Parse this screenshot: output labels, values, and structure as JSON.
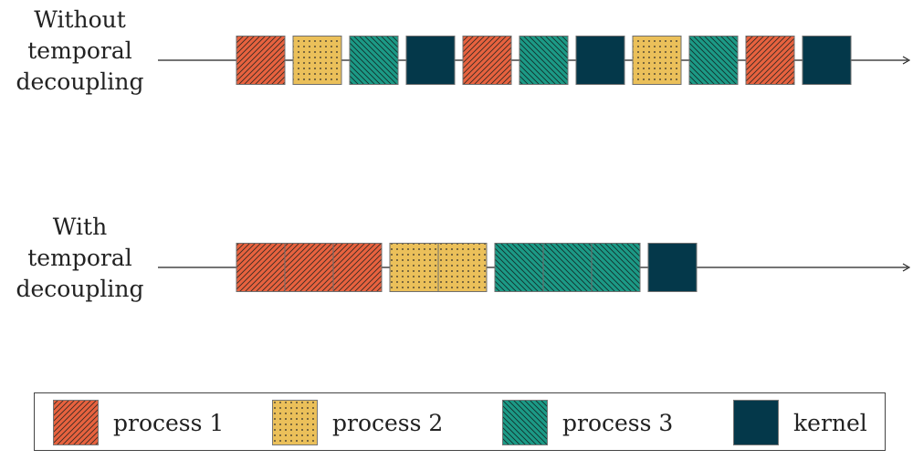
{
  "rows": [
    {
      "label": [
        "Without",
        "temporal",
        "decoupling"
      ],
      "sequence": [
        "p1",
        "p2",
        "p3",
        "kernel",
        "p1",
        "p3",
        "kernel",
        "p2",
        "p3",
        "p1",
        "kernel"
      ]
    },
    {
      "label": [
        "With",
        "temporal",
        "decoupling"
      ],
      "sequence": [
        "p1",
        "p1",
        "p1",
        "p2",
        "p2",
        "p3",
        "p3",
        "p3",
        "kernel"
      ]
    }
  ],
  "legend": [
    {
      "key": "p1",
      "label": "process 1",
      "pattern": "diagonal-hatch-up",
      "color": "#e8623f"
    },
    {
      "key": "p2",
      "label": "process 2",
      "pattern": "dots",
      "color": "#ebc05a"
    },
    {
      "key": "p3",
      "label": "process 3",
      "pattern": "diagonal-hatch-down",
      "color": "#1c9a86"
    },
    {
      "key": "kernel",
      "label": "kernel",
      "pattern": "solid",
      "color": "#04384a"
    }
  ]
}
